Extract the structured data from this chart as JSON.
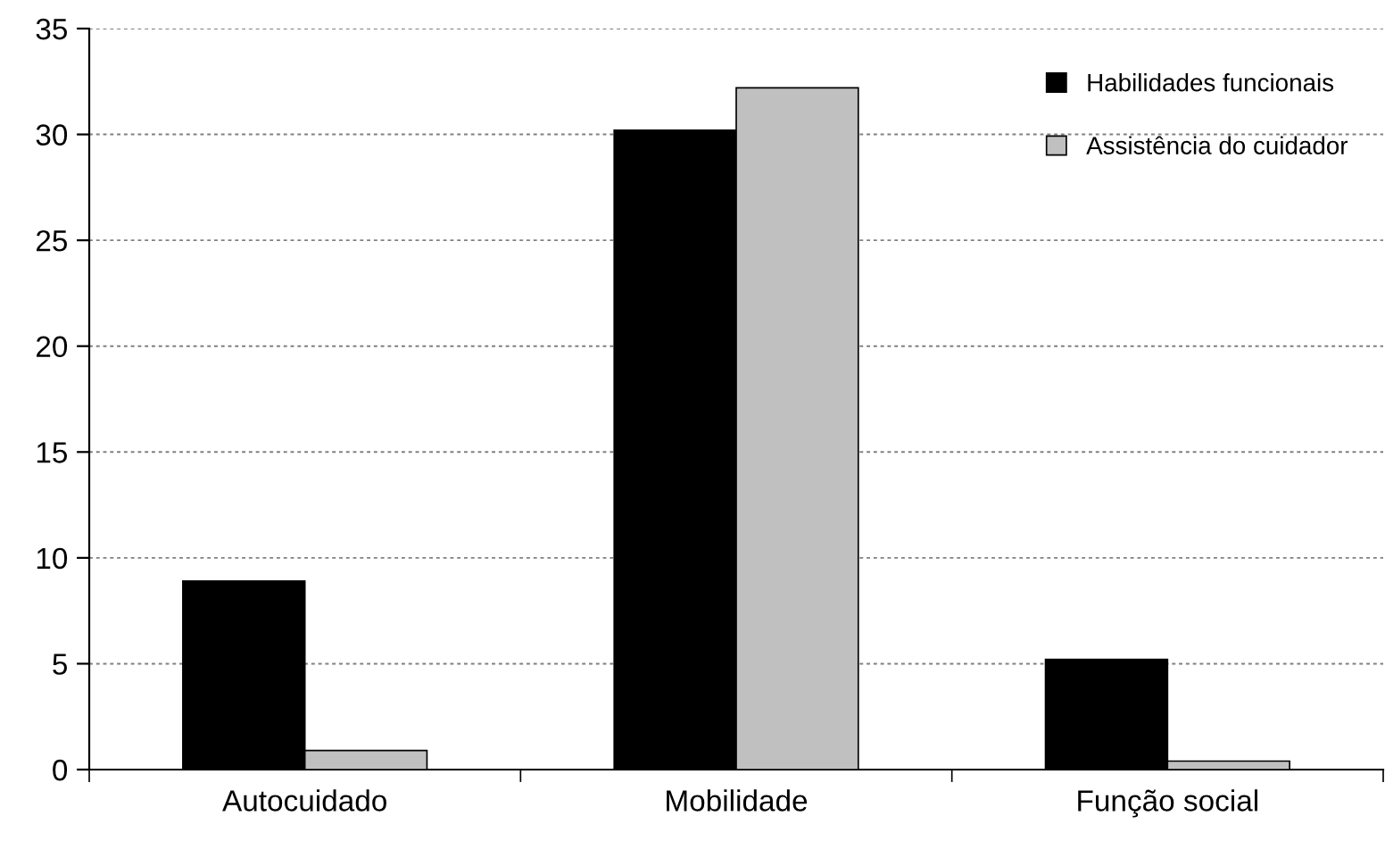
{
  "chart_data": {
    "type": "bar",
    "categories": [
      "Autocuidado",
      "Mobilidade",
      "Função social"
    ],
    "series": [
      {
        "name": "Habilidades funcionais",
        "color": "#000000",
        "values": [
          8.9,
          30.2,
          5.2
        ]
      },
      {
        "name": "Assistência do cuidador",
        "color": "#c0c0c0",
        "values": [
          0.9,
          32.2,
          0.4
        ]
      }
    ],
    "ylim": [
      0,
      35
    ],
    "yticks": [
      0,
      5,
      10,
      15,
      20,
      25,
      30,
      35
    ],
    "grid": "y",
    "legend": "top right"
  }
}
